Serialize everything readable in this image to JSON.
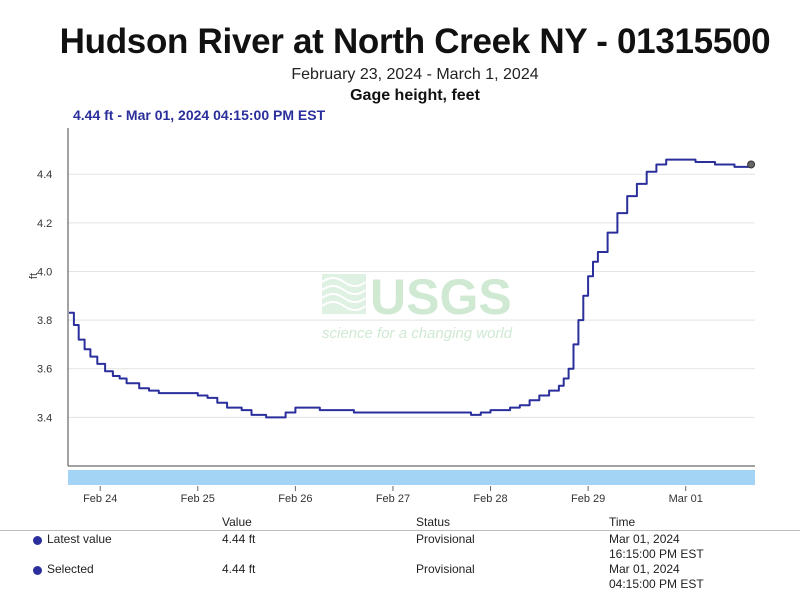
{
  "header": {
    "title": "Hudson River at North Creek NY - 01315500",
    "date_range": "February 23, 2024 - March 1, 2024",
    "parameter": "Gage height, feet",
    "readout": "4.44 ft - Mar 01, 2024 04:15:00 PM EST"
  },
  "watermark": {
    "logo": "USGS",
    "tagline": "science for a changing world"
  },
  "chart_data": {
    "type": "line",
    "ylabel": "ft",
    "ylim": [
      3.2,
      4.59
    ],
    "yticks": [
      3.4,
      3.6,
      3.8,
      4.0,
      4.2,
      4.4
    ],
    "ytick_labels": [
      "3.4",
      "3.6",
      "3.8",
      "4.0",
      "4.2",
      "4.4"
    ],
    "xlim": [
      -0.33,
      6.71
    ],
    "xticks": [
      0,
      1,
      2,
      3,
      4,
      5,
      6
    ],
    "xtick_labels": [
      "Feb 24",
      "Feb 25",
      "Feb 26",
      "Feb 27",
      "Feb 28",
      "Feb 29",
      "Mar 01"
    ],
    "grid": true,
    "series": [
      {
        "color": "#2a2f9c",
        "x": [
          -0.32,
          -0.27,
          -0.22,
          -0.16,
          -0.1,
          -0.03,
          0.05,
          0.13,
          0.2,
          0.27,
          0.4,
          0.5,
          0.6,
          0.75,
          0.9,
          1.0,
          1.1,
          1.2,
          1.3,
          1.45,
          1.55,
          1.7,
          1.8,
          1.9,
          2.0,
          2.1,
          2.25,
          2.4,
          2.6,
          2.8,
          3.0,
          3.2,
          3.4,
          3.55,
          3.7,
          3.8,
          3.9,
          4.0,
          4.1,
          4.2,
          4.3,
          4.4,
          4.5,
          4.6,
          4.7,
          4.75,
          4.8,
          4.85,
          4.9,
          4.95,
          5.0,
          5.05,
          5.1,
          5.2,
          5.3,
          5.4,
          5.5,
          5.6,
          5.7,
          5.8,
          5.85,
          5.9,
          6.0,
          6.1,
          6.2,
          6.3,
          6.4,
          6.5,
          6.6,
          6.67
        ],
        "y": [
          3.83,
          3.78,
          3.72,
          3.68,
          3.65,
          3.62,
          3.59,
          3.57,
          3.56,
          3.54,
          3.52,
          3.51,
          3.5,
          3.5,
          3.5,
          3.49,
          3.48,
          3.46,
          3.44,
          3.43,
          3.41,
          3.4,
          3.4,
          3.42,
          3.44,
          3.44,
          3.43,
          3.43,
          3.42,
          3.42,
          3.42,
          3.42,
          3.42,
          3.42,
          3.42,
          3.41,
          3.42,
          3.43,
          3.43,
          3.44,
          3.45,
          3.47,
          3.49,
          3.51,
          3.53,
          3.56,
          3.6,
          3.7,
          3.8,
          3.9,
          3.98,
          4.04,
          4.08,
          4.16,
          4.24,
          4.31,
          4.36,
          4.41,
          4.44,
          4.46,
          4.46,
          4.46,
          4.46,
          4.45,
          4.45,
          4.44,
          4.44,
          4.43,
          4.43,
          4.44
        ]
      }
    ]
  },
  "table": {
    "headers": [
      "Value",
      "Status",
      "Time"
    ],
    "rows": [
      {
        "label": "Latest value",
        "value": "4.44 ft",
        "status": "Provisional",
        "time1": "Mar 01, 2024",
        "time2": "16:15:00 PM EST"
      },
      {
        "label": "Selected",
        "value": "4.44 ft",
        "status": "Provisional",
        "time1": "Mar 01, 2024",
        "time2": "04:15:00 PM EST"
      }
    ]
  }
}
